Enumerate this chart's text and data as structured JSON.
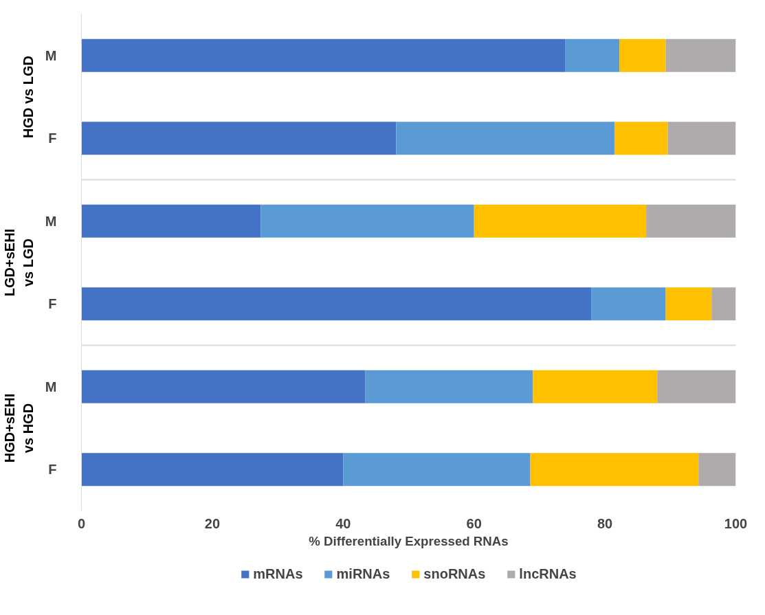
{
  "chart_data": {
    "type": "bar",
    "orientation": "horizontal",
    "stacked": true,
    "xlabel": "% Differentially Expressed RNAs",
    "categories": [
      "M",
      "F",
      "M",
      "F",
      "M",
      "F"
    ],
    "annotations": [
      "HGD vs LGD",
      "LGD+sEHI\nvs LGD",
      "HGD+sEHI\nvs HGD"
    ],
    "xlim": [
      0,
      100
    ],
    "xticks": [
      0,
      20,
      40,
      60,
      80,
      100
    ],
    "legend": "bottom",
    "series": [
      {
        "name": "mRNAs",
        "color": "#4472c4",
        "values": [
          73.9,
          48.1,
          27.4,
          77.9,
          43.4,
          40.0
        ]
      },
      {
        "name": "miRNAs",
        "color": "#5b9bd5",
        "values": [
          8.3,
          33.4,
          32.6,
          11.4,
          25.6,
          28.6
        ]
      },
      {
        "name": "snoRNAs",
        "color": "#ffc000",
        "values": [
          7.1,
          8.1,
          26.3,
          7.0,
          19.0,
          25.7
        ]
      },
      {
        "name": "lncRNAs",
        "color": "#afabab",
        "values": [
          10.7,
          10.4,
          13.7,
          3.7,
          12.0,
          5.7
        ]
      }
    ]
  }
}
